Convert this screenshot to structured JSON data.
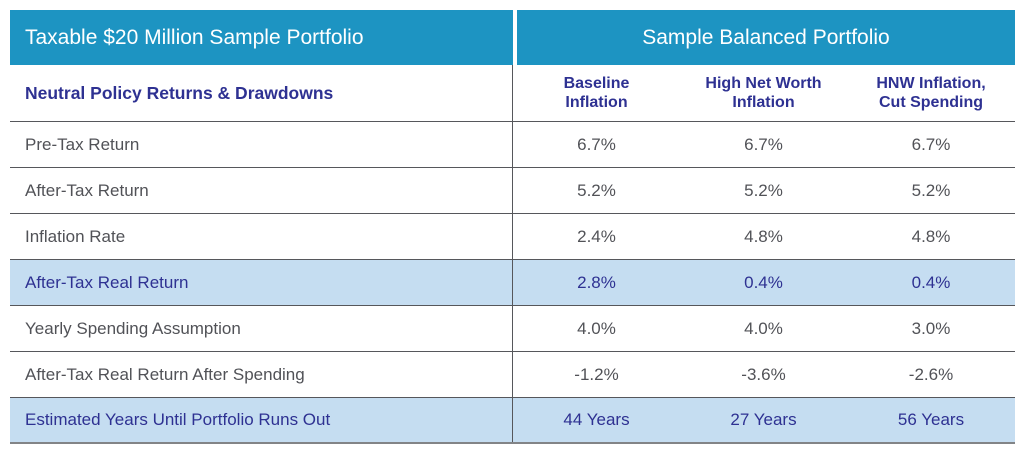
{
  "table": {
    "left_header": "Taxable $20 Million Sample Portfolio",
    "right_header": "Sample Balanced Portfolio",
    "row_group_label": "Neutral Policy Returns & Drawdowns",
    "columns": [
      "Baseline Inflation",
      "High Net Worth Inflation",
      "HNW Inflation, Cut Spending"
    ],
    "rows": [
      {
        "label": "Pre-Tax Return",
        "values": [
          "6.7%",
          "6.7%",
          "6.7%"
        ],
        "highlight": false
      },
      {
        "label": "After-Tax Return",
        "values": [
          "5.2%",
          "5.2%",
          "5.2%"
        ],
        "highlight": false
      },
      {
        "label": "Inflation Rate",
        "values": [
          "2.4%",
          "4.8%",
          "4.8%"
        ],
        "highlight": false
      },
      {
        "label": "After-Tax Real Return",
        "values": [
          "2.8%",
          "0.4%",
          "0.4%"
        ],
        "highlight": true
      },
      {
        "label": "Yearly Spending Assumption",
        "values": [
          "4.0%",
          "4.0%",
          "3.0%"
        ],
        "highlight": false
      },
      {
        "label": "After-Tax Real Return After Spending",
        "values": [
          "-1.2%",
          "-3.6%",
          "-2.6%"
        ],
        "highlight": false
      },
      {
        "label": "Estimated Years Until Portfolio Runs Out",
        "values": [
          "44 Years",
          "27 Years",
          "56 Years"
        ],
        "highlight": true
      }
    ]
  },
  "colors": {
    "header_teal": "#1d94c2",
    "navy_text": "#2e3192",
    "body_text": "#515257",
    "highlight_blue": "#c5ddf1",
    "row_border": "#56575b"
  }
}
